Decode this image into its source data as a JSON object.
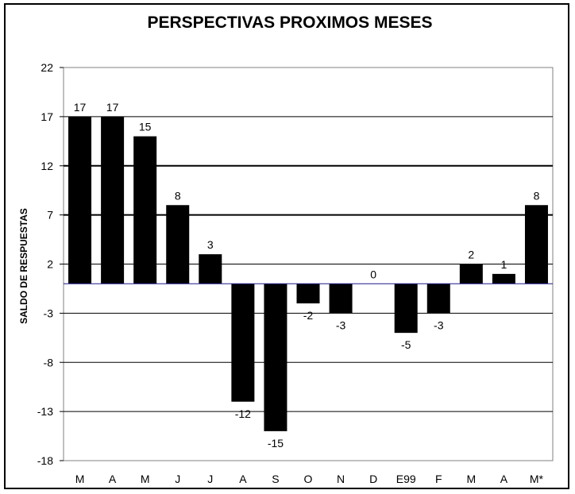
{
  "chart_data": {
    "type": "bar",
    "title": "PERSPECTIVAS PROXIMOS MESES",
    "xlabel": "",
    "ylabel": "SALDO DE RESPUESTAS",
    "categories": [
      "M",
      "A",
      "M",
      "J",
      "J",
      "A",
      "S",
      "O",
      "N",
      "D",
      "E99",
      "F",
      "M",
      "A",
      "M*"
    ],
    "values": [
      17,
      17,
      15,
      8,
      3,
      -12,
      -15,
      -2,
      -3,
      0,
      -5,
      -3,
      2,
      1,
      8
    ],
    "data_labels": [
      "17",
      "17",
      "15",
      "8",
      "3",
      "-12",
      "-15",
      "-2",
      "-3",
      "0",
      "-5",
      "-3",
      "2",
      "1",
      "8"
    ],
    "ylim": [
      -18,
      22
    ],
    "yticks": [
      22,
      17,
      12,
      7,
      2,
      -3,
      -8,
      -13,
      -18
    ],
    "ytick_labels": [
      "22",
      "17",
      "12",
      "7",
      "2",
      "-3",
      "-8",
      "-13",
      "-18"
    ],
    "grid": true,
    "legend": "none",
    "colors": {
      "bar": "#000000",
      "zero_line": "#1a1a8c",
      "grid": "#000000"
    }
  }
}
